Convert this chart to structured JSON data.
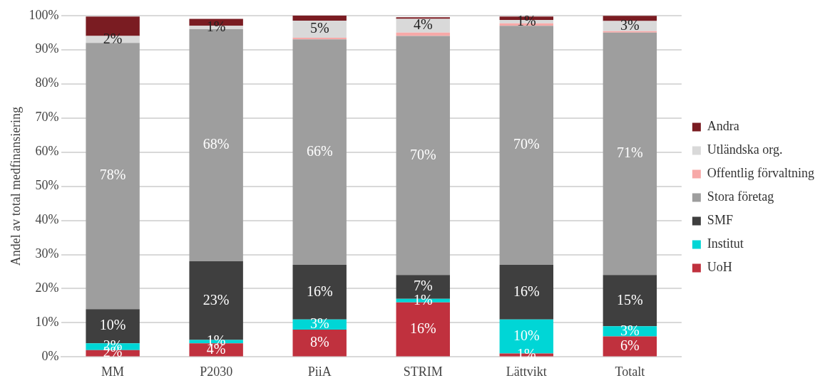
{
  "chart_data": {
    "type": "bar",
    "stacked": true,
    "ylabel": "Andel av total medfinansiering",
    "categories": [
      "MM",
      "P2030",
      "PiiA",
      "STRIM",
      "Lättvikt",
      "Totalt"
    ],
    "series": [
      {
        "name": "UoH",
        "color": "#c0313e",
        "values": [
          2,
          4,
          8,
          16,
          1,
          6
        ],
        "value_labels": [
          "2%",
          "4%",
          "8%",
          "16%",
          "1%",
          "6%"
        ]
      },
      {
        "name": "Institut",
        "color": "#00d6d6",
        "values": [
          2,
          1,
          3,
          1,
          10,
          3
        ],
        "value_labels": [
          "2%",
          "1%",
          "3%",
          "1%",
          "10%",
          "3%"
        ]
      },
      {
        "name": "SMF",
        "color": "#3f3f3f",
        "values": [
          10,
          23,
          16,
          7,
          16,
          15
        ],
        "value_labels": [
          "10%",
          "23%",
          "16%",
          "7%",
          "16%",
          "15%"
        ]
      },
      {
        "name": "Stora företag",
        "color": "#9e9e9e",
        "values": [
          78,
          68,
          66,
          70,
          70,
          71
        ],
        "value_labels": [
          "78%",
          "68%",
          "66%",
          "70%",
          "70%",
          "71%"
        ]
      },
      {
        "name": "Offentlig förvaltning",
        "color": "#f7a9a8",
        "values": [
          null,
          null,
          0.5,
          1,
          0.7,
          0.4
        ]
      },
      {
        "name": "Utländska org.",
        "color": "#d9d9d9",
        "values": [
          2,
          1,
          5,
          4,
          1,
          3
        ],
        "value_labels": [
          "2%",
          "1%",
          "5%",
          "4%",
          "1%",
          "3%"
        ]
      },
      {
        "name": "Andra",
        "color": "#7a1c22",
        "values": [
          5.7,
          2,
          1.5,
          0.5,
          1,
          1.5
        ]
      }
    ],
    "ylim": [
      0,
      100
    ],
    "yticks": [
      {
        "value": 0,
        "label": "0%"
      },
      {
        "value": 10,
        "label": "10%"
      },
      {
        "value": 20,
        "label": "20%"
      },
      {
        "value": 30,
        "label": "30%"
      },
      {
        "value": 40,
        "label": "40%"
      },
      {
        "value": 50,
        "label": "50%"
      },
      {
        "value": 60,
        "label": "60%"
      },
      {
        "value": 70,
        "label": "70%"
      },
      {
        "value": 80,
        "label": "80%"
      },
      {
        "value": 90,
        "label": "90%"
      },
      {
        "value": 100,
        "label": "100%"
      }
    ],
    "grid": "y",
    "legend": "right"
  }
}
